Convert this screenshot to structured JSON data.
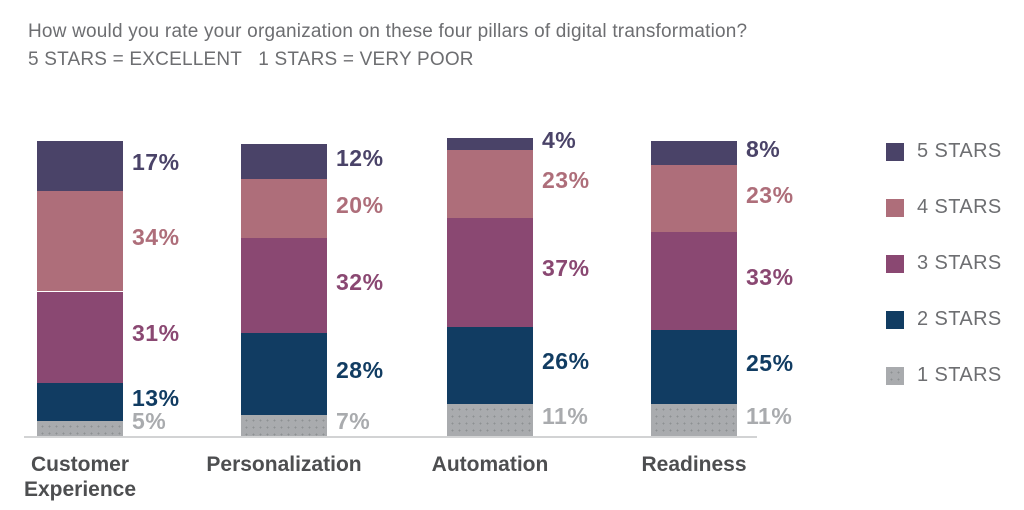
{
  "header": {
    "title": "How would you rate your organization on these four pillars of digital transformation?",
    "subtitle": "5 STARS = EXCELLENT   1 STARS = VERY POOR"
  },
  "colors": {
    "background": "#ffffff",
    "title_text": "#6d6e71",
    "category_text": "#4d4e50",
    "axis_line": "#d2d3d4",
    "star5": "#4a4368",
    "star4": "#ae6e7a",
    "star3": "#8a4872",
    "star2": "#113c62",
    "star1": "#a9abae"
  },
  "chart_data": {
    "type": "bar",
    "stacked": true,
    "orientation": "vertical",
    "units": "%",
    "grid": false,
    "ylim": [
      0,
      100
    ],
    "legend_position": "right",
    "value_labels": "right-of-bar",
    "categories": [
      "Customer Experience",
      "Personalization",
      "Automation",
      "Readiness"
    ],
    "series": [
      {
        "name": "5 STARS",
        "color": "#4a4368",
        "values": [
          17,
          12,
          4,
          8
        ]
      },
      {
        "name": "4 STARS",
        "color": "#ae6e7a",
        "values": [
          34,
          20,
          23,
          23
        ]
      },
      {
        "name": "3 STARS",
        "color": "#8a4872",
        "values": [
          31,
          32,
          37,
          33
        ]
      },
      {
        "name": "2 STARS",
        "color": "#113c62",
        "values": [
          13,
          28,
          26,
          25
        ]
      },
      {
        "name": "1 STARS",
        "color": "#a9abae",
        "values": [
          5,
          7,
          11,
          11
        ],
        "pattern": "dots"
      }
    ]
  }
}
